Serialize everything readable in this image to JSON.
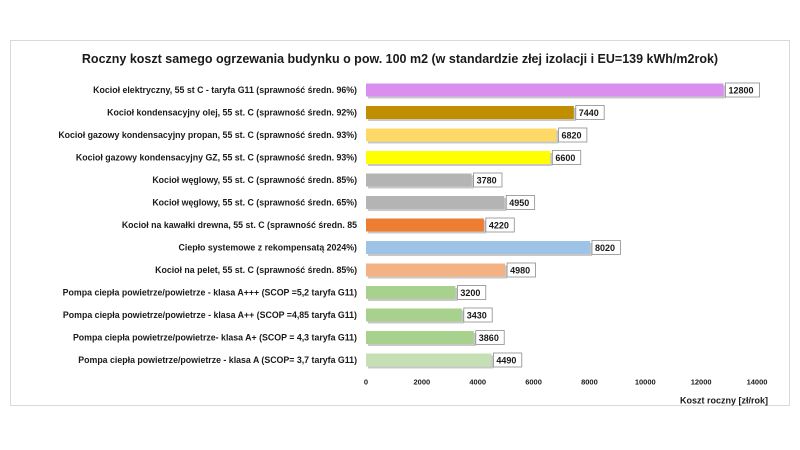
{
  "chart_data": {
    "type": "bar",
    "orientation": "horizontal",
    "title": "Roczny koszt samego ogrzewania budynku o pow. 100 m2 (w standardzie złej izolacji i EU=139 kWh/m2rok)",
    "xlabel": "Koszt roczny [zł/rok]",
    "ylabel": "",
    "xlim": [
      0,
      14000
    ],
    "xticks": [
      0,
      2000,
      4000,
      6000,
      8000,
      10000,
      12000,
      14000
    ],
    "grid": false,
    "legend": "none",
    "categories": [
      "Kocioł  elektryczny, 55 st C -  taryfa G11 (sprawność średn. 96%)",
      "Kocioł  kondensacyjny olej, 55 st. C (sprawność średn. 92%)",
      "Kocioł gazowy kondensacyjny propan, 55 st. C (sprawność średn. 93%)",
      "Kocioł gazowy kondensacyjny GZ, 55 st. C (sprawność średn. 93%)",
      "Kocioł węglowy,  55 st. C (sprawność średn. 85%)",
      "Kocioł węglowy, 55 st. C (sprawność średn. 65%)",
      "Kocioł na kawałki drewna, 55 st. C (sprawność średn. 85",
      "Ciepło systemowe z rekompensatą 2024%)",
      "Kocioł na pelet, 55 st. C (sprawność średn. 85%)",
      "Pompa ciepła powietrze/powietrze -  klasa A+++ (SCOP =5,2 taryfa G11)",
      "Pompa ciepła powietrze/powietrze - klasa A++ (SCOP =4,85 taryfa G11)",
      "Pompa ciepła powietrze/powietrze-  klasa A+ (SCOP = 4,3 taryfa G11)",
      "Pompa ciepła powietrze/powietrze - klasa A (SCOP= 3,7 taryfa G11)"
    ],
    "values": [
      12800,
      7440,
      6820,
      6600,
      3780,
      4950,
      4220,
      8020,
      4980,
      3200,
      3430,
      3860,
      4490
    ],
    "colors": [
      "#d98ef0",
      "#bf8f00",
      "#ffd966",
      "#ffff00",
      "#b4b4b4",
      "#b4b4b4",
      "#ed7d31",
      "#9dc3e6",
      "#f4b183",
      "#a9d18e",
      "#a9d18e",
      "#a9d18e",
      "#c5e0b4"
    ]
  }
}
